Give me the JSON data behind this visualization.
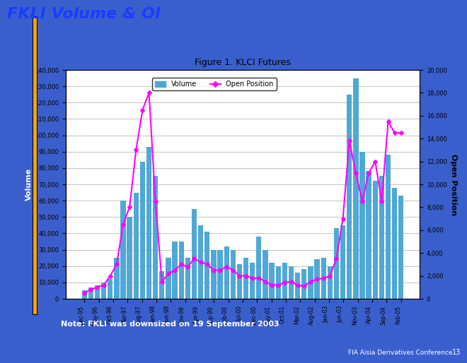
{
  "title": "Figure 1. KLCI Futures",
  "slide_title": "FKLI Volume & OI",
  "note": "Note: FKLI was downsized on 19 September 2003",
  "footer": "FIA Aisia Derivatives Conference",
  "page_num": "13",
  "xlabel_labels": [
    "Dec-95",
    "May-96",
    "Oct-96",
    "Mar-97",
    "Aug-97",
    "Jan-98",
    "Jun-98",
    "Nov-98",
    "Apr-99",
    "Sep-99",
    "Feb-00",
    "Jul-00",
    "Dec-00",
    "May-01",
    "Oct-01",
    "Mar-02",
    "Aug-02",
    "Jan-03",
    "Jun-03",
    "Nov-03",
    "Apr-04",
    "Sep-04",
    "Feb-05"
  ],
  "volume": [
    5000,
    7000,
    8000,
    10000,
    12000,
    25000,
    60000,
    50000,
    65000,
    84000,
    93000,
    75000,
    17000,
    25000,
    35000,
    35000,
    25000,
    55000,
    45000,
    41000,
    30000,
    30000,
    32000,
    30000,
    21000,
    25000,
    22000,
    38000,
    30000,
    22000,
    20000,
    22000,
    20000,
    16000,
    18000,
    20000,
    24000,
    25000,
    20000,
    43000,
    45000,
    125000,
    135000,
    90000,
    78000,
    72000,
    75000,
    88000,
    68000,
    63000
  ],
  "open_position": [
    500,
    800,
    1000,
    1200,
    2000,
    3000,
    6500,
    8000,
    13000,
    16500,
    18000,
    8500,
    1500,
    2200,
    2500,
    3000,
    2800,
    3500,
    3200,
    3000,
    2500,
    2500,
    2800,
    2500,
    2000,
    2000,
    1800,
    1800,
    1500,
    1200,
    1200,
    1400,
    1500,
    1200,
    1100,
    1500,
    1700,
    1800,
    2000,
    3500,
    7000,
    13800,
    11000,
    8500,
    11000,
    12000,
    8500,
    15500,
    14500,
    14500
  ],
  "volume_color": "#4fa8d5",
  "oi_color": "#ff00ff",
  "bg_slide": "#3a5fcd",
  "bg_chart": "#ffffff",
  "ylim_left": [
    0,
    140000
  ],
  "ylim_right": [
    0,
    20000
  ],
  "yticks_left": [
    0,
    10000,
    20000,
    30000,
    40000,
    50000,
    60000,
    70000,
    80000,
    90000,
    100000,
    110000,
    120000,
    130000,
    140000
  ],
  "yticks_right": [
    0,
    2000,
    4000,
    6000,
    8000,
    10000,
    12000,
    14000,
    16000,
    18000,
    20000
  ],
  "ylabel_left": "Volume",
  "ylabel_right": "Open Position"
}
